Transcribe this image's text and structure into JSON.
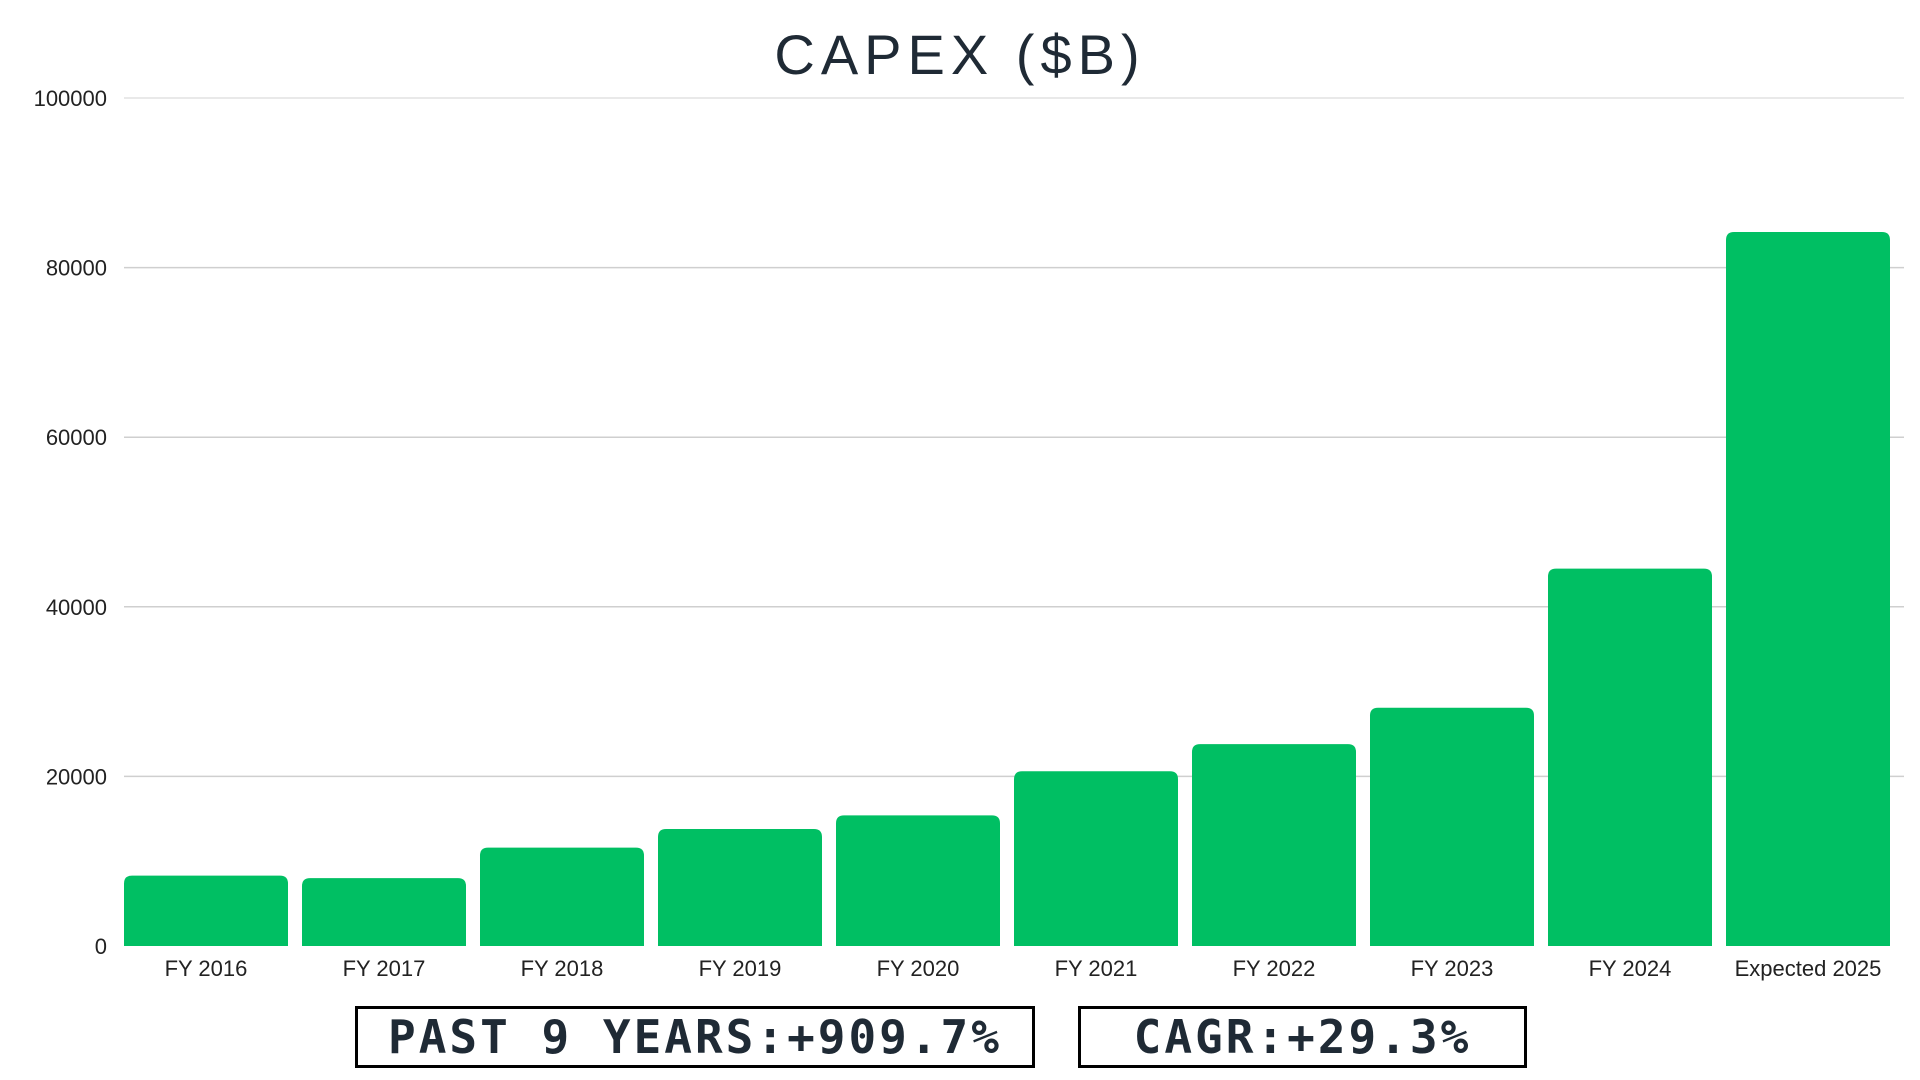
{
  "chart_data": {
    "type": "bar",
    "title": "CAPEX ($B)",
    "xlabel": "",
    "ylabel": "",
    "categories": [
      "FY 2016",
      "FY 2017",
      "FY 2018",
      "FY 2019",
      "FY 2020",
      "FY 2021",
      "FY 2022",
      "FY 2023",
      "FY 2024",
      "Expected 2025"
    ],
    "values": [
      8300,
      8000,
      11600,
      13800,
      15400,
      20600,
      23800,
      28100,
      44500,
      84200
    ],
    "ylim": [
      0,
      100000
    ],
    "yticks": [
      "0",
      "20000",
      "40000",
      "60000",
      "80000",
      "100000"
    ],
    "grid": true,
    "bar_color": "#00bf63"
  },
  "annotations": {
    "past_years": "PAST 9 YEARS:+909.7%",
    "cagr": "CAGR:+29.3%"
  }
}
